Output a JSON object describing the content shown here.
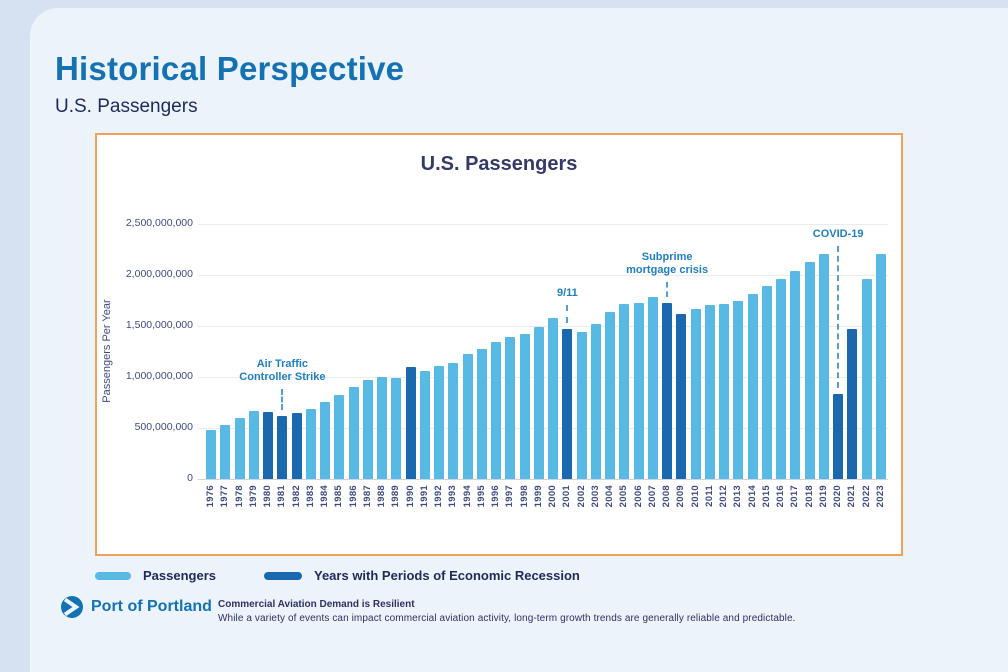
{
  "page": {
    "title": "Historical Perspective",
    "subtitle": "U.S. Passengers"
  },
  "chart_data": {
    "type": "bar",
    "title": "U.S. Passengers",
    "ylabel": "Passengers Per Year",
    "ylim": [
      0,
      2500000000
    ],
    "grid": true,
    "ytick_labels_top_to_bottom": [
      "2,500,000,000",
      "2,000,000,000",
      "1,500,000,000",
      "1,000,000,000",
      "500,000,000",
      "0"
    ],
    "categories": [
      1976,
      1977,
      1978,
      1979,
      1980,
      1981,
      1982,
      1983,
      1984,
      1985,
      1986,
      1987,
      1988,
      1989,
      1990,
      1991,
      1992,
      1993,
      1994,
      1995,
      1996,
      1997,
      1998,
      1999,
      2000,
      2001,
      2002,
      2003,
      2004,
      2005,
      2006,
      2007,
      2008,
      2009,
      2010,
      2011,
      2012,
      2013,
      2014,
      2015,
      2016,
      2017,
      2018,
      2019,
      2020,
      2021,
      2022,
      2023
    ],
    "values": [
      480000000,
      525000000,
      600000000,
      670000000,
      655000000,
      620000000,
      645000000,
      685000000,
      755000000,
      825000000,
      900000000,
      975000000,
      1000000000,
      995000000,
      1095000000,
      1055000000,
      1105000000,
      1135000000,
      1225000000,
      1275000000,
      1345000000,
      1390000000,
      1425000000,
      1490000000,
      1580000000,
      1475000000,
      1440000000,
      1520000000,
      1640000000,
      1720000000,
      1730000000,
      1780000000,
      1730000000,
      1620000000,
      1670000000,
      1710000000,
      1720000000,
      1750000000,
      1810000000,
      1890000000,
      1960000000,
      2040000000,
      2130000000,
      2210000000,
      830000000,
      1475000000,
      1965000000,
      2210000000
    ],
    "recession_years": [
      1980,
      1981,
      1982,
      1990,
      2001,
      2008,
      2009,
      2020,
      2021
    ],
    "annotations": [
      {
        "lines": [
          "Air Traffic",
          "Controller Strike"
        ],
        "year": 1981,
        "text_bottom": 161
      },
      {
        "lines": [
          "9/11"
        ],
        "year": 2001,
        "text_bottom": 77
      },
      {
        "lines": [
          "Subprime",
          "mortgage crisis"
        ],
        "year": 2008,
        "text_bottom": 54
      },
      {
        "lines": [
          "COVID-19"
        ],
        "year": 2020,
        "text_bottom": 18
      }
    ],
    "colors": {
      "passengers": "#57b9e4",
      "recession": "#1a69ae",
      "annotation": "#1e7fc2",
      "dashed_line": "#569fd6",
      "panel_border": "#f2a15a"
    }
  },
  "legend": {
    "passengers_label": "Passengers",
    "recession_label": "Years with Periods of Economic Recession"
  },
  "footer": {
    "logo_text": "Port of Portland",
    "note_title": "Commercial Aviation Demand is Resilient",
    "note_body": "While a variety of events can impact commercial aviation activity, long-term growth trends are generally reliable and predictable."
  }
}
